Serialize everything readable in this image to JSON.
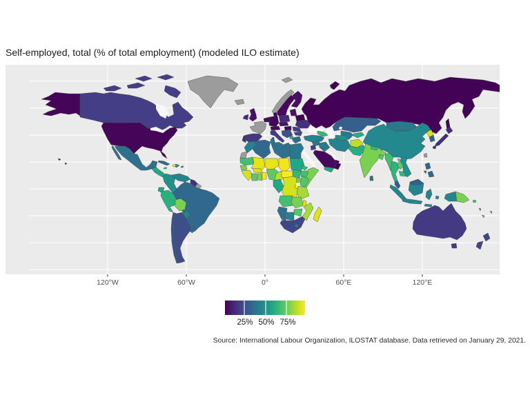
{
  "title": "Self-employed, total (% of total employment) (modeled ILO estimate)",
  "caption": "Source: International Labour Organization, ILOSTAT database. Data retrieved on January 29, 2021.",
  "axis": {
    "x_ticks": [
      "120°W",
      "60°W",
      "0°",
      "60°E",
      "120°E"
    ]
  },
  "legend": {
    "ticks": [
      "25%",
      "50%",
      "75%"
    ],
    "gradient": [
      "#440154",
      "#482475",
      "#414487",
      "#355f8d",
      "#2a788e",
      "#21918c",
      "#22a884",
      "#44bf70",
      "#7ad151",
      "#bddf26",
      "#fde725"
    ],
    "na_color": "#9c9c9c"
  },
  "colors": {
    "panel_bg": "#ebebeb",
    "grid": "#ffffff",
    "inner_water": "#f7f7f7",
    "country_border": "#4a4a4a",
    "page_bg": "#ffffff"
  },
  "chart_data": {
    "type": "heatmap",
    "subtype": "choropleth-world-map",
    "title": "Self-employed, total (% of total employment) (modeled ILO estimate)",
    "unit": "% of total employment",
    "projection": "equirectangular",
    "scale": {
      "min": 0,
      "max": 100,
      "breaks": [
        25,
        50,
        75
      ],
      "palette": "viridis",
      "na_color": "#9c9c9c"
    },
    "regions": [
      {
        "id": "usa",
        "label": "United States",
        "value": 5,
        "color": "#45065a"
      },
      {
        "id": "canada",
        "label": "Canada",
        "value": 21,
        "color": "#433e85"
      },
      {
        "id": "greenland",
        "label": "Greenland",
        "value": null,
        "color": null
      },
      {
        "id": "mexico",
        "label": "Mexico",
        "value": 37,
        "color": "#2e708e"
      },
      {
        "id": "central_america_north",
        "label": "Guatemala-Nicaragua",
        "value": 61,
        "color": "#22a884"
      },
      {
        "id": "central_america_south",
        "label": "Costa Rica & Panama",
        "value": 49,
        "color": "#26828e"
      },
      {
        "id": "cuba",
        "label": "Cuba",
        "value": 39,
        "color": "#31688e"
      },
      {
        "id": "jamaica",
        "label": "Jamaica",
        "value": 73,
        "color": "#44bf70"
      },
      {
        "id": "haiti",
        "label": "Haiti",
        "value": 95,
        "color": "#fde725"
      },
      {
        "id": "dominican_republic",
        "label": "Dominican Republic",
        "value": 54,
        "color": "#21918c"
      },
      {
        "id": "puerto_rico",
        "label": "Puerto Rico",
        "value": 45,
        "color": "#2a788e"
      },
      {
        "id": "colombia",
        "label": "Colombia",
        "value": 54,
        "color": "#21918c"
      },
      {
        "id": "venezuela",
        "label": "Venezuela",
        "value": 49,
        "color": "#26828e"
      },
      {
        "id": "guyana_suriname",
        "label": "Guyana & Suriname",
        "value": 19,
        "color": "#46307e"
      },
      {
        "id": "french_guiana",
        "label": "French Guiana",
        "value": null,
        "color": null
      },
      {
        "id": "brazil",
        "label": "Brazil",
        "value": 39,
        "color": "#31688e"
      },
      {
        "id": "ecuador",
        "label": "Ecuador",
        "value": 61,
        "color": "#22a884"
      },
      {
        "id": "peru",
        "label": "Peru",
        "value": 64,
        "color": "#2ab07f"
      },
      {
        "id": "bolivia",
        "label": "Bolivia",
        "value": 83,
        "color": "#7ad151"
      },
      {
        "id": "paraguay",
        "label": "Paraguay",
        "value": 49,
        "color": "#26828e"
      },
      {
        "id": "uruguay",
        "label": "Uruguay",
        "value": 39,
        "color": "#31688e"
      },
      {
        "id": "chile",
        "label": "Chile",
        "value": 31,
        "color": "#3b528b"
      },
      {
        "id": "argentina",
        "label": "Argentina",
        "value": 30,
        "color": "#3d4e8a"
      },
      {
        "id": "iceland",
        "label": "Iceland",
        "value": null,
        "color": null
      },
      {
        "id": "uk",
        "label": "United Kingdom",
        "value": 10,
        "color": "#461067"
      },
      {
        "id": "ireland",
        "label": "Ireland",
        "value": 17,
        "color": "#472a7a"
      },
      {
        "id": "portugal",
        "label": "Portugal",
        "value": 18,
        "color": "#472f7d"
      },
      {
        "id": "spain",
        "label": "Spain",
        "value": 22,
        "color": "#453781"
      },
      {
        "id": "france",
        "label": "France",
        "value": null,
        "color": null
      },
      {
        "id": "belgium_netherlands",
        "label": "Belgium & Netherlands",
        "value": 8,
        "color": "#46085c"
      },
      {
        "id": "germany",
        "label": "Germany",
        "value": 5,
        "color": "#45055a"
      },
      {
        "id": "denmark",
        "label": "Denmark",
        "value": 8,
        "color": "#46085c"
      },
      {
        "id": "switzerland_austria",
        "label": "Switzerland & Austria",
        "value": 9,
        "color": "#450a5c"
      },
      {
        "id": "czech_slovakia",
        "label": "Czechia & Slovakia",
        "value": 13,
        "color": "#471365"
      },
      {
        "id": "poland",
        "label": "Poland",
        "value": 17,
        "color": "#472a7a"
      },
      {
        "id": "italy",
        "label": "Italy",
        "value": 25,
        "color": "#433e85"
      },
      {
        "id": "hungary",
        "label": "Hungary",
        "value": 8,
        "color": "#46085c"
      },
      {
        "id": "western_balkans",
        "label": "Serbia & W. Balkans",
        "value": 31,
        "color": "#3b528b"
      },
      {
        "id": "albania",
        "label": "Albania",
        "value": 63,
        "color": "#27ad81"
      },
      {
        "id": "greece",
        "label": "Greece",
        "value": 42,
        "color": "#2e6d8e"
      },
      {
        "id": "romania",
        "label": "Romania",
        "value": 25,
        "color": "#433e85"
      },
      {
        "id": "bulgaria",
        "label": "Bulgaria",
        "value": 27,
        "color": "#414487"
      },
      {
        "id": "baltic_states",
        "label": "Baltic states",
        "value": 13,
        "color": "#471365"
      },
      {
        "id": "belarus",
        "label": "Belarus",
        "value": 3,
        "color": "#440154"
      },
      {
        "id": "ukraine",
        "label": "Ukraine",
        "value": 19,
        "color": "#46307e"
      },
      {
        "id": "sweden",
        "label": "Sweden",
        "value": 8,
        "color": "#46085c"
      },
      {
        "id": "finland",
        "label": "Finland",
        "value": 11,
        "color": "#471063"
      },
      {
        "id": "norway",
        "label": "Norway",
        "value": null,
        "color": null
      },
      {
        "id": "svalbard",
        "label": "Svalbard",
        "value": null,
        "color": null
      },
      {
        "id": "russia",
        "label": "Russia",
        "value": 4,
        "color": "#440256"
      },
      {
        "id": "turkey",
        "label": "Turkey",
        "value": 50,
        "color": "#26828e"
      },
      {
        "id": "syria",
        "label": "Syria",
        "value": 46,
        "color": "#2a788e"
      },
      {
        "id": "jordan_israel",
        "label": "Jordan & Israel",
        "value": 25,
        "color": "#433e85"
      },
      {
        "id": "iraq",
        "label": "Iraq",
        "value": 46,
        "color": "#2a788e"
      },
      {
        "id": "saudi_arabia",
        "label": "Saudi Arabia",
        "value": 7,
        "color": "#450a5c"
      },
      {
        "id": "yemen",
        "label": "Yemen",
        "value": 61,
        "color": "#22a884"
      },
      {
        "id": "oman",
        "label": "Oman",
        "value": 4,
        "color": "#440154"
      },
      {
        "id": "uae_qatar",
        "label": "UAE & Qatar",
        "value": 3,
        "color": "#440154"
      },
      {
        "id": "iran",
        "label": "Iran",
        "value": 49,
        "color": "#26828e"
      },
      {
        "id": "afghanistan",
        "label": "Afghanistan",
        "value": 90,
        "color": "#c2df23"
      },
      {
        "id": "pakistan",
        "label": "Pakistan",
        "value": 62,
        "color": "#28ae80"
      },
      {
        "id": "turkmenistan",
        "label": "Turkmenistan",
        "value": 54,
        "color": "#21918c"
      },
      {
        "id": "uzbekistan",
        "label": "Uzbekistan",
        "value": 46,
        "color": "#2a788e"
      },
      {
        "id": "kyrgyz_tajik",
        "label": "Kyrgyzstan & Tajikistan",
        "value": 63,
        "color": "#27ad81"
      },
      {
        "id": "kazakhstan",
        "label": "Kazakhstan",
        "value": 35,
        "color": "#355f8d"
      },
      {
        "id": "caucasus",
        "label": "Georgia, Armenia & Azerbaijan",
        "value": 68,
        "color": "#35b779"
      },
      {
        "id": "mongolia",
        "label": "Mongolia",
        "value": 46,
        "color": "#2a788e"
      },
      {
        "id": "china",
        "label": "China",
        "value": 52,
        "color": "#23898e"
      },
      {
        "id": "north_korea",
        "label": "North Korea",
        "value": 94,
        "color": "#d8e219"
      },
      {
        "id": "south_korea",
        "label": "South Korea",
        "value": 35,
        "color": "#355f8d"
      },
      {
        "id": "japan",
        "label": "Japan",
        "value": 13,
        "color": "#432e77"
      },
      {
        "id": "taiwan",
        "label": "Taiwan",
        "value": null,
        "color": null
      },
      {
        "id": "india",
        "label": "India",
        "value": 82,
        "color": "#7ad151"
      },
      {
        "id": "nepal",
        "label": "Nepal",
        "value": 70,
        "color": "#35b779"
      },
      {
        "id": "bangladesh",
        "label": "Bangladesh",
        "value": 77,
        "color": "#54c568"
      },
      {
        "id": "sri_lanka",
        "label": "Sri Lanka",
        "value": 42,
        "color": "#2e708e"
      },
      {
        "id": "myanmar",
        "label": "Myanmar",
        "value": 72,
        "color": "#42be71"
      },
      {
        "id": "thailand",
        "label": "Thailand",
        "value": 66,
        "color": "#2fb47c"
      },
      {
        "id": "laos",
        "label": "Laos",
        "value": 79,
        "color": "#5ec962"
      },
      {
        "id": "vietnam",
        "label": "Vietnam",
        "value": 55,
        "color": "#21918c"
      },
      {
        "id": "cambodia",
        "label": "Cambodia",
        "value": 68,
        "color": "#35b779"
      },
      {
        "id": "malaysia",
        "label": "Malaysia",
        "value": 34,
        "color": "#355f8d"
      },
      {
        "id": "indonesia",
        "label": "Indonesia",
        "value": 44,
        "color": "#25858e"
      },
      {
        "id": "east_timor",
        "label": "Timor-Leste",
        "value": 70,
        "color": "#35b779"
      },
      {
        "id": "papua_new_guinea",
        "label": "Papua New Guinea",
        "value": 82,
        "color": "#7ad151"
      },
      {
        "id": "philippines",
        "label": "Philippines",
        "value": 40,
        "color": "#31688e"
      },
      {
        "id": "solomon_islands",
        "label": "Solomon Islands",
        "value": 74,
        "color": "#44bf70"
      },
      {
        "id": "vanuatu",
        "label": "Vanuatu",
        "value": 62,
        "color": "#22a884"
      },
      {
        "id": "fiji",
        "label": "Fiji",
        "value": 70,
        "color": "#35b779"
      },
      {
        "id": "new_caledonia",
        "label": "New Caledonia",
        "value": null,
        "color": null
      },
      {
        "id": "australia",
        "label": "Australia",
        "value": 22,
        "color": "#443983"
      },
      {
        "id": "new_zealand",
        "label": "New Zealand",
        "value": 27,
        "color": "#414487"
      },
      {
        "id": "morocco",
        "label": "Morocco",
        "value": 50,
        "color": "#26828e"
      },
      {
        "id": "western_sahara",
        "label": "Western Sahara",
        "value": null,
        "color": null
      },
      {
        "id": "algeria",
        "label": "Algeria",
        "value": 39,
        "color": "#31688e"
      },
      {
        "id": "tunisia",
        "label": "Tunisia",
        "value": 46,
        "color": "#2a788e"
      },
      {
        "id": "libya",
        "label": "Libya",
        "value": 42,
        "color": "#2e708e"
      },
      {
        "id": "egypt",
        "label": "Egypt",
        "value": 47,
        "color": "#29798e"
      },
      {
        "id": "mauritania",
        "label": "Mauritania",
        "value": 73,
        "color": "#44bf70"
      },
      {
        "id": "mali",
        "label": "Mali",
        "value": 95,
        "color": "#e5e419"
      },
      {
        "id": "niger",
        "label": "Niger",
        "value": 96,
        "color": "#e7e419"
      },
      {
        "id": "chad",
        "label": "Chad",
        "value": 97,
        "color": "#f1e51d"
      },
      {
        "id": "sudan",
        "label": "Sudan",
        "value": 61,
        "color": "#22a884"
      },
      {
        "id": "south_sudan",
        "label": "South Sudan",
        "value": 69,
        "color": "#35b779"
      },
      {
        "id": "eritrea",
        "label": "Eritrea",
        "value": 69,
        "color": "#35b779"
      },
      {
        "id": "ethiopia",
        "label": "Ethiopia",
        "value": 73,
        "color": "#44bf70"
      },
      {
        "id": "somalia",
        "label": "Somalia",
        "value": 83,
        "color": "#7ad151"
      },
      {
        "id": "senegal",
        "label": "Senegal & Gambia",
        "value": 82,
        "color": "#7ad151"
      },
      {
        "id": "guinea_cluster",
        "label": "Guinea, Sierra Leone & Liberia",
        "value": 93,
        "color": "#d8e219"
      },
      {
        "id": "ivory_coast",
        "label": "Côte d'Ivoire",
        "value": 79,
        "color": "#5ec962"
      },
      {
        "id": "ghana",
        "label": "Ghana",
        "value": 82,
        "color": "#7ad151"
      },
      {
        "id": "togo_benin",
        "label": "Togo & Benin",
        "value": 97,
        "color": "#fde725"
      },
      {
        "id": "burkina_faso",
        "label": "Burkina Faso",
        "value": 92,
        "color": "#d8e219"
      },
      {
        "id": "nigeria",
        "label": "Nigeria",
        "value": 78,
        "color": "#5ec962"
      },
      {
        "id": "cameroon",
        "label": "Cameroon",
        "value": 91,
        "color": "#bddf26"
      },
      {
        "id": "central_african_republic",
        "label": "Central African Republic",
        "value": 97,
        "color": "#fde725"
      },
      {
        "id": "gabon_congo",
        "label": "Gabon & Congo",
        "value": 60,
        "color": "#22a884"
      },
      {
        "id": "drc",
        "label": "DR Congo",
        "value": 93,
        "color": "#d2e21b"
      },
      {
        "id": "uganda",
        "label": "Uganda",
        "value": 81,
        "color": "#7ad151"
      },
      {
        "id": "kenya",
        "label": "Kenya",
        "value": 77,
        "color": "#54c568"
      },
      {
        "id": "tanzania",
        "label": "Tanzania",
        "value": 89,
        "color": "#a5db36"
      },
      {
        "id": "rwanda_burundi",
        "label": "Rwanda & Burundi",
        "value": 96,
        "color": "#fde725"
      },
      {
        "id": "angola",
        "label": "Angola",
        "value": 72,
        "color": "#44bf70"
      },
      {
        "id": "zambia",
        "label": "Zambia",
        "value": 81,
        "color": "#7ad151"
      },
      {
        "id": "malawi",
        "label": "Malawi",
        "value": 93,
        "color": "#dfe318"
      },
      {
        "id": "mozambique",
        "label": "Mozambique",
        "value": 88,
        "color": "#a5db36"
      },
      {
        "id": "zimbabwe",
        "label": "Zimbabwe",
        "value": 67,
        "color": "#54c568"
      },
      {
        "id": "botswana",
        "label": "Botswana",
        "value": 49,
        "color": "#26828e"
      },
      {
        "id": "namibia",
        "label": "Namibia",
        "value": 43,
        "color": "#2e708e"
      },
      {
        "id": "south_africa",
        "label": "South Africa",
        "value": 28,
        "color": "#3f4788"
      },
      {
        "id": "lesotho",
        "label": "Lesotho",
        "value": 54,
        "color": "#21918c"
      },
      {
        "id": "madagascar",
        "label": "Madagascar",
        "value": 94,
        "color": "#dfe318"
      }
    ]
  }
}
